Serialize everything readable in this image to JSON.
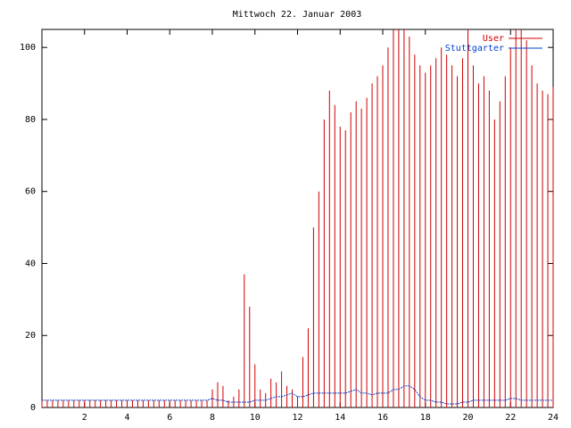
{
  "chart_data": {
    "type": "impulses",
    "title": "Mittwoch 22. Januar 2003",
    "x": [
      0,
      0.25,
      0.5,
      0.75,
      1,
      1.25,
      1.5,
      1.75,
      2,
      2.25,
      2.5,
      2.75,
      3,
      3.25,
      3.5,
      3.75,
      4,
      4.25,
      4.5,
      4.75,
      5,
      5.25,
      5.5,
      5.75,
      6,
      6.25,
      6.5,
      6.75,
      7,
      7.25,
      7.5,
      7.75,
      8,
      8.25,
      8.5,
      8.75,
      9,
      9.25,
      9.5,
      9.75,
      10,
      10.25,
      10.5,
      10.75,
      11,
      11.25,
      11.5,
      11.75,
      12,
      12.25,
      12.5,
      12.75,
      13,
      13.25,
      13.5,
      13.75,
      14,
      14.25,
      14.5,
      14.75,
      15,
      15.25,
      15.5,
      15.75,
      16,
      16.25,
      16.5,
      16.75,
      17,
      17.25,
      17.5,
      17.75,
      18,
      18.25,
      18.5,
      18.75,
      19,
      19.25,
      19.5,
      19.75,
      20,
      20.25,
      20.5,
      20.75,
      21,
      21.25,
      21.5,
      21.75,
      22,
      22.25,
      22.5,
      22.75,
      23,
      23.25,
      23.5,
      23.75,
      24
    ],
    "series": [
      {
        "name": "User",
        "color": "#d00000",
        "style": "impulses",
        "values": [
          2,
          2,
          2,
          2,
          2,
          2,
          2,
          2,
          2,
          2,
          2,
          2,
          2,
          2,
          2,
          2,
          2,
          2,
          2,
          2,
          2,
          2,
          2,
          2,
          2,
          2,
          2,
          2,
          2,
          2,
          2,
          2,
          5,
          7,
          6,
          2,
          3,
          5,
          37,
          28,
          12,
          5,
          4,
          8,
          7,
          10,
          6,
          5,
          3,
          14,
          22,
          50,
          60,
          80,
          88,
          84,
          78,
          77,
          82,
          85,
          83,
          86,
          90,
          92,
          95,
          100,
          105,
          105,
          105,
          103,
          98,
          95,
          93,
          95,
          97,
          100,
          98,
          95,
          92,
          97,
          105,
          95,
          90,
          92,
          88,
          80,
          85,
          92,
          100,
          105,
          105,
          102,
          95,
          90,
          88,
          87,
          89
        ]
      },
      {
        "name": "Stuttgarter",
        "color": "#0040d0",
        "style": "line",
        "values": [
          2,
          2,
          2,
          2,
          2,
          2,
          2,
          2,
          2,
          2,
          2,
          2,
          2,
          2,
          2,
          2,
          2,
          2,
          2,
          2,
          2,
          2,
          2,
          2,
          2,
          2,
          2,
          2,
          2,
          2,
          2,
          2,
          2.5,
          2,
          2,
          1.5,
          1.5,
          1.5,
          1.5,
          1.5,
          2,
          2,
          2,
          2.5,
          3,
          3,
          3.5,
          4,
          3,
          3,
          3.5,
          4,
          4,
          4,
          4,
          4,
          4,
          4,
          4.5,
          5,
          4,
          4,
          3.5,
          4,
          4,
          4,
          5,
          5,
          6,
          6,
          5,
          3,
          2,
          2,
          1.5,
          1.5,
          1,
          1,
          1,
          1.5,
          1.5,
          2,
          2,
          2,
          2,
          2,
          2,
          2,
          2.5,
          2.5,
          2,
          2,
          2,
          2,
          2,
          2,
          2
        ]
      }
    ],
    "xlim": [
      0,
      24
    ],
    "xticks": [
      2,
      4,
      6,
      8,
      10,
      12,
      14,
      16,
      18,
      20,
      22,
      24
    ],
    "ylim": [
      0,
      105
    ],
    "yticks": [
      0,
      20,
      40,
      60,
      80,
      100
    ],
    "grid": false,
    "legend": "top-right"
  }
}
